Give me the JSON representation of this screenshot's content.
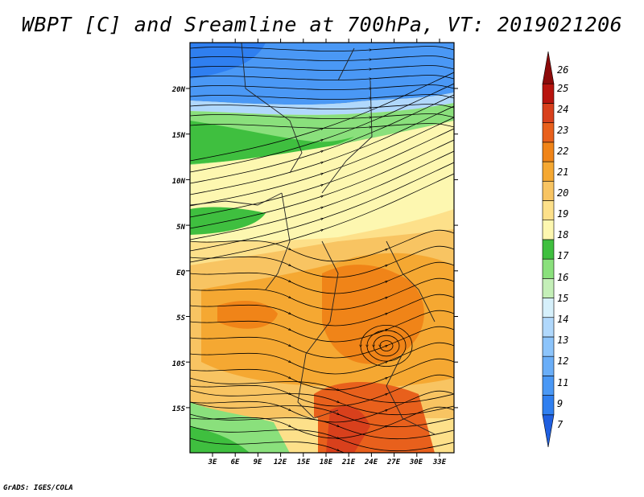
{
  "title": "WBPT [C] and Sreamline at 700hPa, VT: 2019021206",
  "credit": "GrADS: IGES/COLA",
  "map": {
    "lon_ticks": [
      "3E",
      "6E",
      "9E",
      "12E",
      "15E",
      "18E",
      "21E",
      "24E",
      "27E",
      "30E",
      "33E"
    ],
    "lat_ticks": [
      "20N",
      "15N",
      "10N",
      "5N",
      "EQ",
      "5S",
      "10S",
      "15S"
    ]
  },
  "colorbar": {
    "labels": [
      "7",
      "9",
      "11",
      "12",
      "13",
      "14",
      "15",
      "16",
      "17",
      "18",
      "19",
      "20",
      "21",
      "22",
      "23",
      "24",
      "25",
      "26"
    ],
    "colors": [
      "#1f5fe0",
      "#2f7ff0",
      "#4a98f5",
      "#6aaef8",
      "#8cc4fb",
      "#b0d8fc",
      "#d6f0fb",
      "#c4efb8",
      "#8ae07c",
      "#3fbf3f",
      "#fdf7b0",
      "#fde08a",
      "#f8c462",
      "#f5a832",
      "#f08418",
      "#e8601c",
      "#d8401c",
      "#b8140e",
      "#8c0a0a"
    ]
  }
}
